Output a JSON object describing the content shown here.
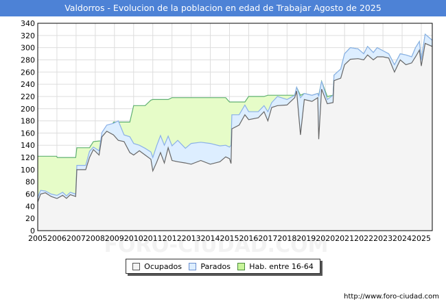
{
  "title": "Valdorros - Evolucion de la poblacion en edad de Trabajar Agosto de 2025",
  "footer_url": "http://www.foro-ciudad.com",
  "watermark": "FORO-CIUDAD.COM",
  "colors": {
    "title_bg": "#4d82d6",
    "ocupados": "#f4f4f4",
    "ocupados_line": "#666666",
    "parados": "#ddeeff",
    "parados_line": "#8ab0e8",
    "hab": "#e6fcc8",
    "hab_line": "#5fb070",
    "grid": "#dddddd"
  },
  "chart_data": {
    "type": "area",
    "title": "Valdorros - Evolucion de la poblacion en edad de Trabajar Agosto de 2025",
    "xlabel": "",
    "ylabel": "",
    "xlim": [
      2005,
      2025.58
    ],
    "ylim": [
      0,
      340
    ],
    "grid": true,
    "legend_position": "bottom",
    "x_ticks": [
      "2005",
      "2006",
      "2007",
      "2008",
      "2009",
      "2010",
      "2011",
      "2012",
      "2013",
      "2014",
      "2015",
      "2016",
      "2017",
      "2018",
      "2019",
      "2020",
      "2021",
      "2022",
      "2023",
      "2024",
      "2025"
    ],
    "y_ticks": [
      0,
      20,
      40,
      60,
      80,
      100,
      120,
      140,
      160,
      180,
      200,
      220,
      240,
      260,
      280,
      300,
      320,
      340
    ],
    "x": [
      2005.0,
      2005.15,
      2005.4,
      2005.7,
      2005.98,
      2006.02,
      2006.3,
      2006.5,
      2006.7,
      2006.98,
      2007.04,
      2007.5,
      2007.7,
      2007.9,
      2008.2,
      2008.35,
      2008.6,
      2008.95,
      2009.2,
      2009.5,
      2009.8,
      2010.0,
      2010.3,
      2010.6,
      2010.9,
      2011.0,
      2011.2,
      2011.4,
      2011.6,
      2011.8,
      2012.0,
      2012.3,
      2012.7,
      2013.0,
      2013.5,
      2014.0,
      2014.5,
      2014.8,
      2015.0,
      2015.08,
      2015.12,
      2015.5,
      2015.8,
      2016.0,
      2016.5,
      2016.8,
      2017.0,
      2017.2,
      2017.5,
      2018.0,
      2018.4,
      2018.5,
      2018.7,
      2018.9,
      2019.3,
      2019.6,
      2019.65,
      2019.8,
      2020.1,
      2020.4,
      2020.45,
      2020.8,
      2021.0,
      2021.3,
      2021.7,
      2022.0,
      2022.2,
      2022.5,
      2022.7,
      2023.0,
      2023.3,
      2023.6,
      2023.9,
      2024.2,
      2024.5,
      2024.7,
      2024.9,
      2025.0,
      2025.2,
      2025.58
    ],
    "series": [
      {
        "name": "Ocupados",
        "values": [
          47,
          60,
          62,
          56,
          53,
          53,
          58,
          53,
          59,
          56,
          100,
          100,
          120,
          133,
          124,
          154,
          163,
          157,
          148,
          146,
          128,
          124,
          131,
          124,
          117,
          98,
          112,
          128,
          111,
          136,
          115,
          113,
          111,
          109,
          115,
          109,
          113,
          121,
          118,
          110,
          167,
          173,
          190,
          182,
          185,
          195,
          180,
          202,
          205,
          206,
          218,
          229,
          157,
          215,
          212,
          218,
          150,
          232,
          208,
          210,
          246,
          250,
          272,
          281,
          282,
          280,
          288,
          280,
          285,
          285,
          283,
          260,
          280,
          272,
          275,
          285,
          296,
          270,
          307,
          302
        ]
      },
      {
        "name": "Parados",
        "values": [
          8,
          6,
          3,
          4,
          5,
          5,
          5,
          4,
          4,
          4,
          7,
          7,
          10,
          4,
          7,
          7,
          10,
          19,
          32,
          11,
          26,
          19,
          9,
          11,
          12,
          22,
          27,
          28,
          29,
          19,
          24,
          35,
          24,
          34,
          30,
          34,
          26,
          19,
          19,
          30,
          23,
          17,
          16,
          13,
          10,
          10,
          15,
          8,
          15,
          9,
          4,
          6,
          61,
          10,
          10,
          7,
          70,
          13,
          7,
          12,
          9,
          15,
          18,
          19,
          16,
          10,
          14,
          12,
          15,
          10,
          7,
          12,
          10,
          16,
          10,
          15,
          14,
          10,
          15,
          10
        ]
      },
      {
        "name": "Hab. entre 16-64",
        "values": [
          122,
          122,
          122,
          122,
          122,
          120,
          120,
          120,
          120,
          120,
          136,
          136,
          136,
          146,
          147,
          147,
          147,
          178,
          178,
          178,
          178,
          205,
          205,
          205,
          214,
          215,
          215,
          215,
          215,
          215,
          218,
          218,
          218,
          218,
          218,
          218,
          218,
          218,
          211,
          211,
          211,
          211,
          211,
          220,
          220,
          220,
          222,
          222,
          222,
          222,
          222,
          235,
          222,
          225,
          222,
          225,
          222,
          245,
          220,
          222,
          255,
          265,
          290,
          300,
          298,
          290,
          302,
          292,
          300,
          295,
          290,
          272,
          290,
          288,
          285,
          300,
          310,
          280,
          322,
          312
        ]
      }
    ]
  }
}
